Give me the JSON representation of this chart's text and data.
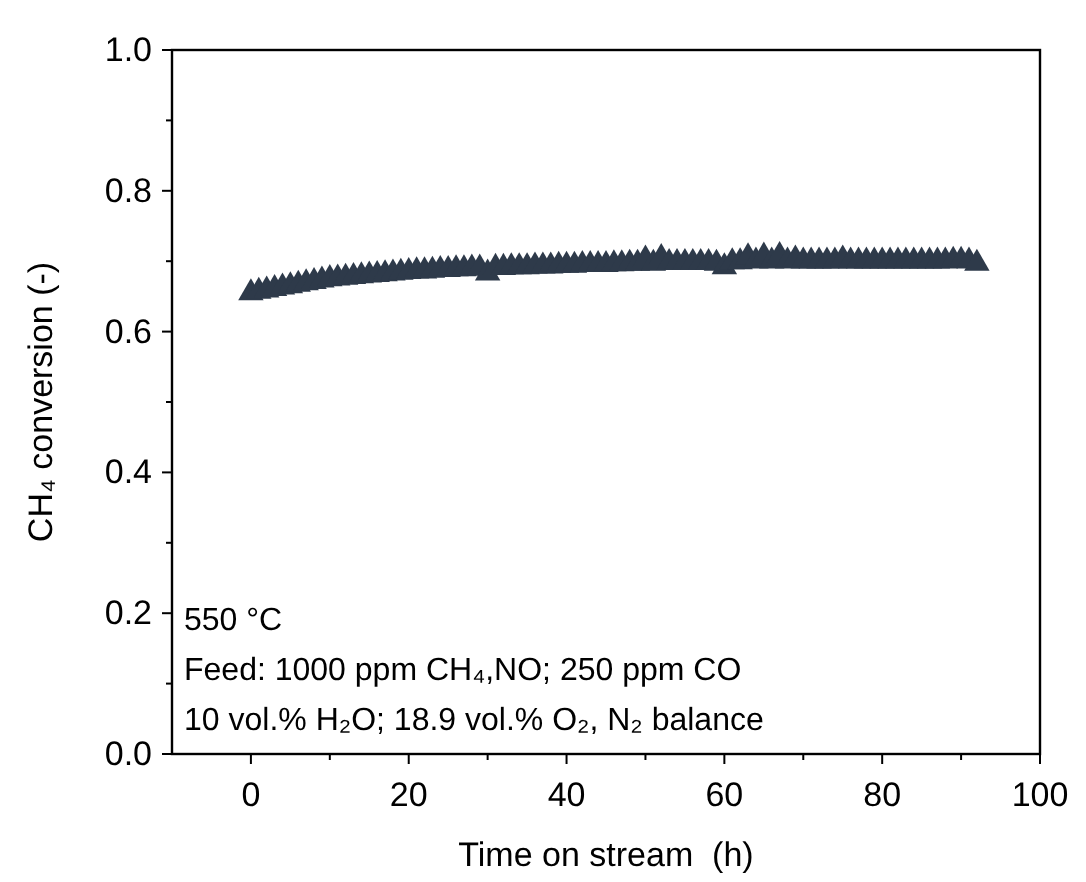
{
  "chart_data": {
    "type": "scatter",
    "xlabel": "Time on stream  (h)",
    "ylabel": "CH₄ conversion (-)",
    "xlim": [
      -10,
      100
    ],
    "ylim": [
      0,
      1.0
    ],
    "xticks": [
      0,
      {
        "value": 10,
        "label": null
      },
      20,
      {
        "value": 30,
        "label": null
      },
      40,
      {
        "value": 50,
        "label": null
      },
      60,
      {
        "value": 70,
        "label": null
      },
      80,
      {
        "value": 90,
        "label": null
      },
      100
    ],
    "yticks": [
      {
        "value": 0,
        "label": "0.0"
      },
      {
        "value": 0.1,
        "label": null
      },
      0.2,
      {
        "value": 0.3,
        "label": null
      },
      0.4,
      {
        "value": 0.5,
        "label": null
      },
      0.6,
      {
        "value": 0.7,
        "label": null
      },
      0.8,
      {
        "value": 0.9,
        "label": null
      },
      {
        "value": 1.0,
        "label": "1.0"
      }
    ],
    "marker": "triangle",
    "grid": false,
    "annotations": [
      "550 °C",
      "Feed: 1000 ppm CH₄,NO; 250 ppm CO",
      "10 vol.% H₂O; 18.9 vol.% O₂, N₂ balance"
    ],
    "series": [
      {
        "color": "#2e3a4a",
        "x": [
          0,
          1,
          2,
          3,
          4,
          5,
          6,
          7,
          8,
          9,
          10,
          11,
          12,
          13,
          14,
          15,
          16,
          17,
          18,
          19,
          20,
          21,
          22,
          23,
          24,
          25,
          26,
          27,
          28,
          29,
          30,
          31,
          32,
          33,
          34,
          35,
          36,
          37,
          38,
          39,
          40,
          41,
          42,
          43,
          44,
          45,
          46,
          47,
          48,
          49,
          50,
          51,
          52,
          53,
          54,
          55,
          56,
          57,
          58,
          59,
          60,
          61,
          62,
          63,
          64,
          65,
          66,
          67,
          68,
          69,
          70,
          71,
          72,
          73,
          74,
          75,
          76,
          77,
          78,
          79,
          80,
          81,
          82,
          83,
          84,
          85,
          86,
          87,
          88,
          89,
          90,
          91,
          92
        ],
        "values": [
          0.655,
          0.657,
          0.659,
          0.661,
          0.663,
          0.665,
          0.667,
          0.669,
          0.671,
          0.673,
          0.675,
          0.676,
          0.677,
          0.678,
          0.679,
          0.68,
          0.681,
          0.682,
          0.683,
          0.684,
          0.685,
          0.686,
          0.686,
          0.687,
          0.688,
          0.688,
          0.689,
          0.689,
          0.69,
          0.69,
          0.683,
          0.691,
          0.691,
          0.692,
          0.692,
          0.692,
          0.693,
          0.693,
          0.693,
          0.694,
          0.694,
          0.694,
          0.695,
          0.695,
          0.695,
          0.695,
          0.696,
          0.696,
          0.697,
          0.697,
          0.703,
          0.697,
          0.705,
          0.698,
          0.698,
          0.698,
          0.698,
          0.698,
          0.698,
          0.697,
          0.692,
          0.699,
          0.699,
          0.706,
          0.7,
          0.707,
          0.7,
          0.708,
          0.7,
          0.703,
          0.7,
          0.7,
          0.7,
          0.7,
          0.7,
          0.703,
          0.7,
          0.7,
          0.7,
          0.7,
          0.7,
          0.7,
          0.7,
          0.7,
          0.7,
          0.7,
          0.7,
          0.7,
          0.7,
          0.701,
          0.701,
          0.7,
          0.697
        ]
      }
    ]
  }
}
